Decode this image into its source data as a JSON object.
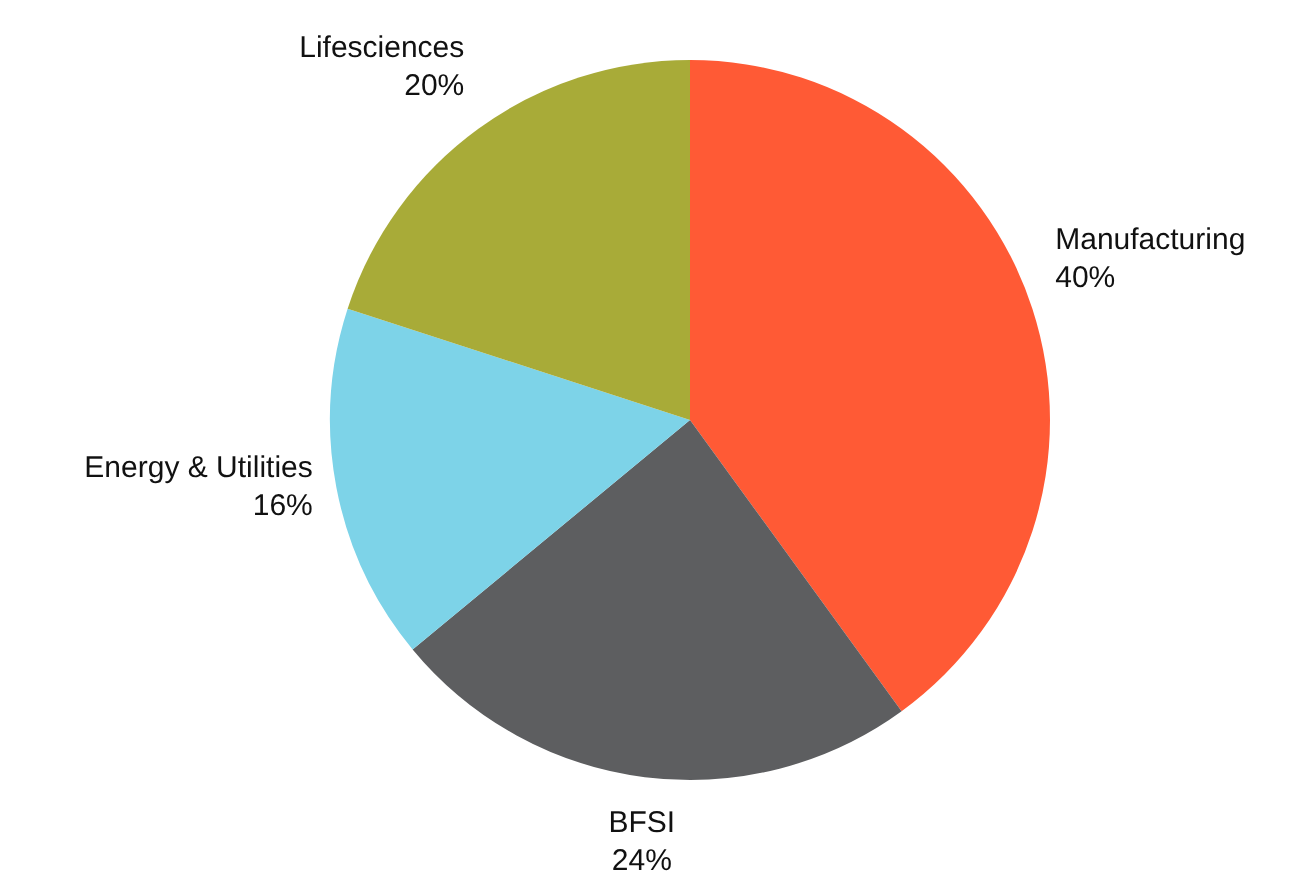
{
  "chart_data": {
    "type": "pie",
    "categories": [
      "Manufacturing",
      "BFSI",
      "Energy & Utilities",
      "Lifesciences"
    ],
    "values": [
      40,
      24,
      16,
      20
    ],
    "value_labels": [
      "40%",
      "24%",
      "16%",
      "20%"
    ],
    "colors": [
      "#ff5a35",
      "#5d5e60",
      "#7dd3e8",
      "#a8ab38"
    ]
  }
}
